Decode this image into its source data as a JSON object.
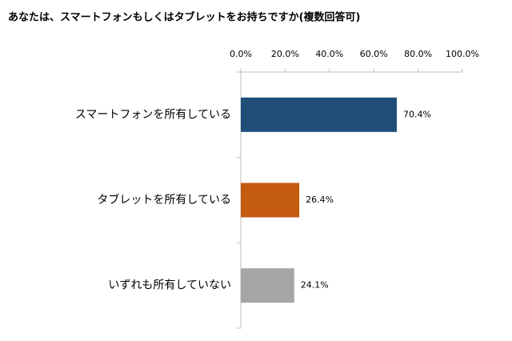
{
  "chart_data": {
    "type": "bar",
    "orientation": "horizontal",
    "title": "あなたは、スマートフォンもしくはタブレットをお持ちですか(複数回答可)",
    "categories": [
      "スマートフォンを所有している",
      "タブレットを所有している",
      "いずれも所有していない"
    ],
    "values": [
      70.4,
      26.4,
      24.1
    ],
    "value_labels": [
      "70.4%",
      "26.4%",
      "24.1%"
    ],
    "colors": [
      "#1f4e79",
      "#c55a11",
      "#a5a5a5"
    ],
    "xlim": [
      0,
      100
    ],
    "xticks": [
      {
        "value": 0,
        "label": "0.0%"
      },
      {
        "value": 20,
        "label": "20.0%"
      },
      {
        "value": 40,
        "label": "40.0%"
      },
      {
        "value": 60,
        "label": "60.0%"
      },
      {
        "value": 80,
        "label": "80.0%"
      },
      {
        "value": 100,
        "label": "100.0%"
      }
    ],
    "grid": false
  }
}
